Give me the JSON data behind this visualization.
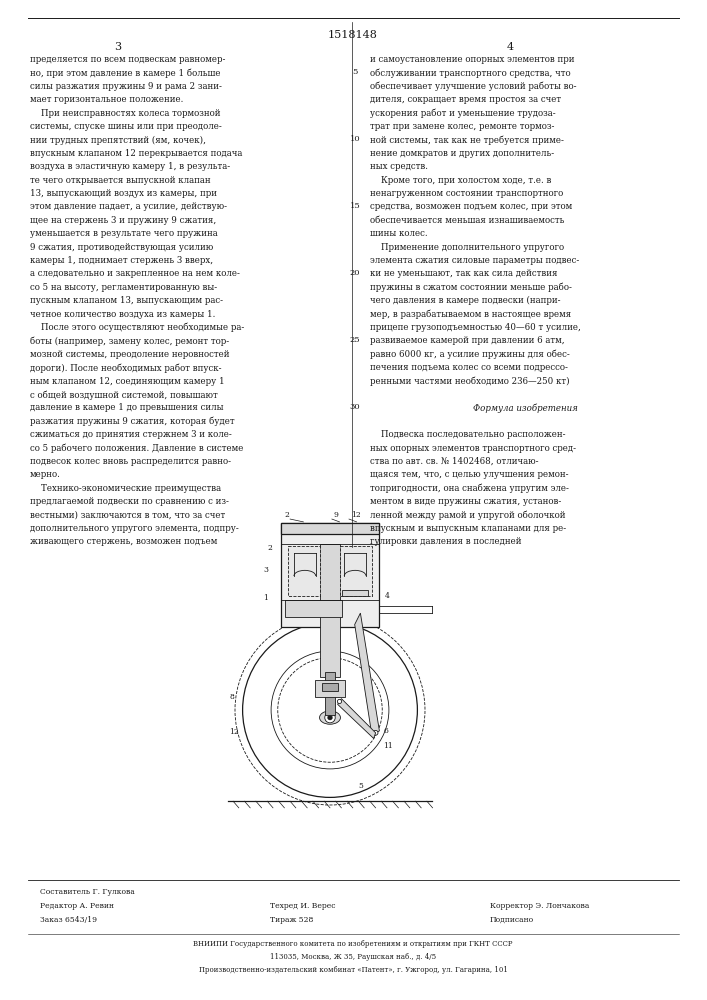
{
  "background_color": "#ffffff",
  "page_width": 7.07,
  "page_height": 10.0,
  "patent_number": "1518148",
  "col_numbers": [
    "3",
    "4"
  ],
  "line_numbers": [
    "5",
    "10",
    "15",
    "20",
    "25",
    "30"
  ],
  "col3_text": [
    "пределяется по всем подвескам равномер-",
    "но, при этом давление в камере 1 больше",
    "силы разжатия пружины 9 и рама 2 зани-",
    "мает горизонтальное положение.",
    "    При неисправностях колеса тормозной",
    "системы, спуске шины или при преодоле-",
    "нии трудных препятствий (ям, кочек),",
    "впускным клапаном 12 перекрывается подача",
    "воздуха в эластичную камеру 1, в результа-",
    "те чего открывается выпускной клапан",
    "13, выпускающий воздух из камеры, при",
    "этом давление падает, а усилие, действую-",
    "щее на стержень 3 и пружину 9 сжатия,",
    "уменьшается в результате чего пружина",
    "9 сжатия, противодействующая усилию",
    "камеры 1, поднимает стержень 3 вверх,",
    "а следовательно и закрепленное на нем коле-",
    "со 5 на высоту, регламентированную вы-",
    "пускным клапаном 13, выпускающим рас-",
    "четное количество воздуха из камеры 1.",
    "    После этого осуществляют необходимые ра-",
    "боты (например, замену колес, ремонт тор-",
    "мозной системы, преодоление неровностей",
    "дороги). После необходимых работ впуск-",
    "ным клапаном 12, соединяющим камеру 1",
    "с общей воздушной системой, повышают",
    "давление в камере 1 до превышения силы",
    "разжатия пружины 9 сжатия, которая будет",
    "сжиматься до принятия стержнем 3 и коле-",
    "со 5 рабочего положения. Давление в системе",
    "подвесок колес вновь распределится равно-",
    "мерно.",
    "    Технико-экономические преимущества",
    "предлагаемой подвески по сравнению с из-",
    "вестными) заключаются в том, что за счет",
    "дополнительного упругого элемента, подпру-",
    "живающего стержень, возможен подъем"
  ],
  "col4_text": [
    "и самоустановление опорных элементов при",
    "обслуживании транспортного средства, что",
    "обеспечивает улучшение условий работы во-",
    "дителя, сокращает время простоя за счет",
    "ускорения работ и уменьшение трудоза-",
    "трат при замене колес, ремонте тормоз-",
    "ной системы, так как не требуется приме-",
    "нение домкратов и других дополнитель-",
    "ных средств.",
    "    Кроме того, при холостом ходе, т.е. в",
    "ненагруженном состоянии транспортного",
    "средства, возможен подъем колес, при этом",
    "обеспечивается меньшая изнашиваемость",
    "шины колес.",
    "    Применение дополнительного упругого",
    "элемента сжатия силовые параметры подвес-",
    "ки не уменьшают, так как сила действия",
    "пружины в сжатом состоянии меньше рабо-",
    "чего давления в камере подвески (напри-",
    "мер, в разрабатываемом в настоящее время",
    "прицепе грузоподъемностью 40—60 т усилие,",
    "развиваемое камерой при давлении 6 атм,",
    "равно 6000 кг, а усилие пружины для обес-",
    "печения подъема колес со всеми подрессо-",
    "ренными частями необходимо 236—250 кт)",
    "",
    "    Формула изобретения",
    "",
    "    Подвеска последовательно расположен-",
    "ных опорных элементов транспортного сред-",
    "ства по авт. св. № 1402468, отличаю-",
    "щаяся тем, что, с целью улучшения ремон-",
    "топригодности, она снабжена упругим эле-",
    "ментом в виде пружины сжатия, установ-",
    "ленной между рамой и упругой оболочкой",
    "впускным и выпускным клапанами для ре-",
    "гулировки давления в последней"
  ],
  "footer_left_lines": [
    "Редактор А. Ревин",
    "Заказ 6543/19"
  ],
  "footer_center_top": "Составитель Г. Гулкова",
  "footer_center_lines": [
    "Техред И. Верес",
    "Тираж 528"
  ],
  "footer_right_lines": [
    "Корректор Э. Лончакова",
    "Подписано"
  ],
  "footer_vniipi_lines": [
    "ВНИИПИ Государственного комитета по изобретениям и открытиям при ГКНТ СССР",
    "113035, Москва, Ж 35, Раушская наб., д. 4/5",
    "Производственно-издательский комбинат «Патент», г. Ужгород, ул. Гагарина, 101"
  ],
  "text_color": "#1a1a1a"
}
